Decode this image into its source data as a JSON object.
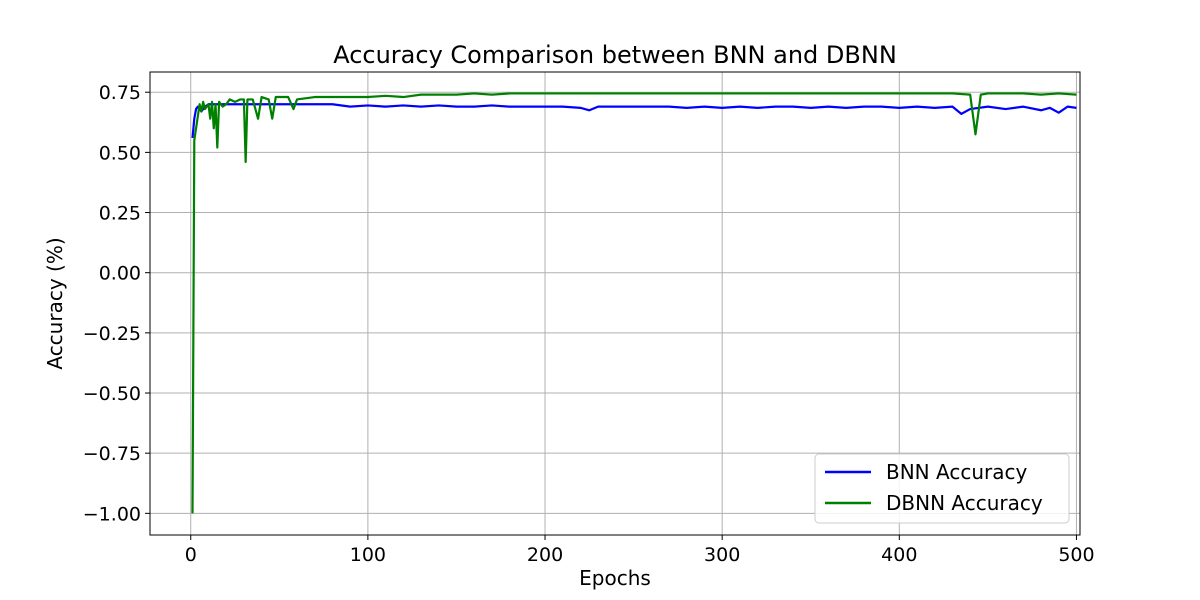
{
  "chart_data": {
    "type": "line",
    "title": "Accuracy Comparison between BNN and DBNN",
    "xlabel": "Epochs",
    "ylabel": "Accuracy (%)",
    "xlim": [
      -23,
      502
    ],
    "ylim": [
      -1.09,
      0.834
    ],
    "xticks": [
      0,
      100,
      200,
      300,
      400,
      500
    ],
    "xtick_labels": [
      "0",
      "100",
      "200",
      "300",
      "400",
      "500"
    ],
    "yticks": [
      -1.0,
      -0.75,
      -0.5,
      -0.25,
      0.0,
      0.25,
      0.5,
      0.75
    ],
    "ytick_labels": [
      "−1.00",
      "−0.75",
      "−0.50",
      "−0.25",
      "0.00",
      "0.25",
      "0.50",
      "0.75"
    ],
    "grid": true,
    "legend_position": "lower-right",
    "series": [
      {
        "name": "BNN Accuracy",
        "color": "#0000ff",
        "points": [
          [
            1,
            0.56
          ],
          [
            2,
            0.64
          ],
          [
            3,
            0.68
          ],
          [
            4,
            0.69
          ],
          [
            6,
            0.67
          ],
          [
            8,
            0.69
          ],
          [
            10,
            0.7
          ],
          [
            14,
            0.7
          ],
          [
            20,
            0.7
          ],
          [
            30,
            0.7
          ],
          [
            40,
            0.7
          ],
          [
            50,
            0.7
          ],
          [
            60,
            0.7
          ],
          [
            70,
            0.7
          ],
          [
            80,
            0.7
          ],
          [
            90,
            0.69
          ],
          [
            100,
            0.695
          ],
          [
            110,
            0.69
          ],
          [
            120,
            0.695
          ],
          [
            130,
            0.69
          ],
          [
            140,
            0.695
          ],
          [
            150,
            0.69
          ],
          [
            160,
            0.69
          ],
          [
            170,
            0.695
          ],
          [
            180,
            0.69
          ],
          [
            190,
            0.69
          ],
          [
            200,
            0.69
          ],
          [
            210,
            0.69
          ],
          [
            220,
            0.685
          ],
          [
            225,
            0.675
          ],
          [
            230,
            0.69
          ],
          [
            240,
            0.69
          ],
          [
            250,
            0.69
          ],
          [
            260,
            0.69
          ],
          [
            270,
            0.69
          ],
          [
            280,
            0.685
          ],
          [
            290,
            0.69
          ],
          [
            300,
            0.685
          ],
          [
            310,
            0.69
          ],
          [
            320,
            0.685
          ],
          [
            330,
            0.69
          ],
          [
            340,
            0.69
          ],
          [
            350,
            0.685
          ],
          [
            360,
            0.69
          ],
          [
            370,
            0.685
          ],
          [
            380,
            0.69
          ],
          [
            390,
            0.69
          ],
          [
            400,
            0.685
          ],
          [
            410,
            0.69
          ],
          [
            420,
            0.685
          ],
          [
            430,
            0.69
          ],
          [
            435,
            0.66
          ],
          [
            440,
            0.68
          ],
          [
            450,
            0.69
          ],
          [
            460,
            0.68
          ],
          [
            470,
            0.69
          ],
          [
            480,
            0.675
          ],
          [
            485,
            0.685
          ],
          [
            490,
            0.665
          ],
          [
            495,
            0.69
          ],
          [
            500,
            0.685
          ]
        ]
      },
      {
        "name": "DBNN Accuracy",
        "color": "#008000",
        "points": [
          [
            1,
            -1.0
          ],
          [
            2,
            0.55
          ],
          [
            3,
            0.6
          ],
          [
            4,
            0.65
          ],
          [
            5,
            0.7
          ],
          [
            6,
            0.67
          ],
          [
            7,
            0.71
          ],
          [
            8,
            0.68
          ],
          [
            9,
            0.69
          ],
          [
            10,
            0.7
          ],
          [
            11,
            0.64
          ],
          [
            12,
            0.71
          ],
          [
            13,
            0.6
          ],
          [
            14,
            0.7
          ],
          [
            15,
            0.52
          ],
          [
            16,
            0.71
          ],
          [
            18,
            0.69
          ],
          [
            20,
            0.7
          ],
          [
            22,
            0.72
          ],
          [
            25,
            0.71
          ],
          [
            28,
            0.72
          ],
          [
            30,
            0.72
          ],
          [
            31,
            0.46
          ],
          [
            32,
            0.72
          ],
          [
            35,
            0.72
          ],
          [
            38,
            0.64
          ],
          [
            40,
            0.73
          ],
          [
            44,
            0.72
          ],
          [
            46,
            0.64
          ],
          [
            48,
            0.73
          ],
          [
            55,
            0.73
          ],
          [
            58,
            0.68
          ],
          [
            60,
            0.72
          ],
          [
            70,
            0.73
          ],
          [
            80,
            0.73
          ],
          [
            90,
            0.73
          ],
          [
            100,
            0.73
          ],
          [
            110,
            0.735
          ],
          [
            120,
            0.73
          ],
          [
            130,
            0.74
          ],
          [
            140,
            0.74
          ],
          [
            150,
            0.74
          ],
          [
            160,
            0.745
          ],
          [
            170,
            0.74
          ],
          [
            180,
            0.745
          ],
          [
            190,
            0.745
          ],
          [
            200,
            0.745
          ],
          [
            210,
            0.745
          ],
          [
            220,
            0.745
          ],
          [
            230,
            0.745
          ],
          [
            240,
            0.745
          ],
          [
            250,
            0.745
          ],
          [
            260,
            0.745
          ],
          [
            270,
            0.745
          ],
          [
            280,
            0.745
          ],
          [
            290,
            0.745
          ],
          [
            300,
            0.745
          ],
          [
            310,
            0.745
          ],
          [
            320,
            0.745
          ],
          [
            330,
            0.745
          ],
          [
            340,
            0.745
          ],
          [
            350,
            0.745
          ],
          [
            360,
            0.745
          ],
          [
            370,
            0.745
          ],
          [
            380,
            0.745
          ],
          [
            390,
            0.745
          ],
          [
            400,
            0.745
          ],
          [
            410,
            0.745
          ],
          [
            420,
            0.745
          ],
          [
            430,
            0.745
          ],
          [
            440,
            0.74
          ],
          [
            443,
            0.575
          ],
          [
            446,
            0.74
          ],
          [
            450,
            0.745
          ],
          [
            460,
            0.745
          ],
          [
            470,
            0.745
          ],
          [
            480,
            0.74
          ],
          [
            490,
            0.745
          ],
          [
            500,
            0.74
          ]
        ]
      }
    ]
  }
}
